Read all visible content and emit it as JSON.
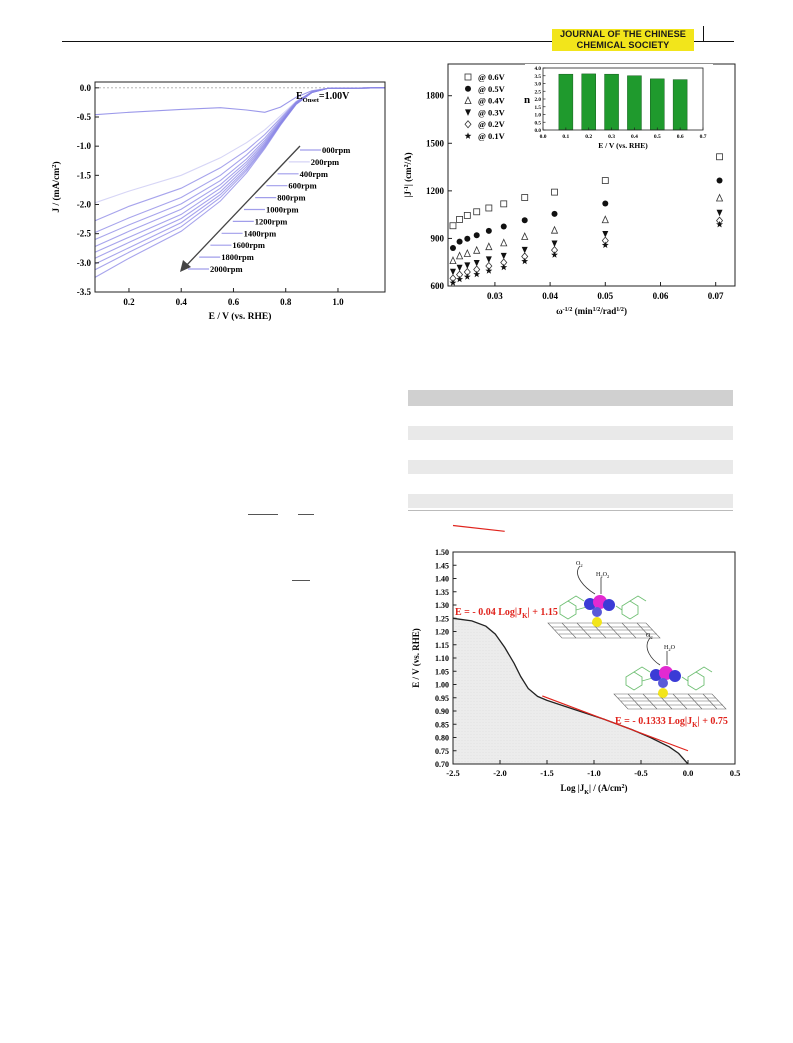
{
  "header": {
    "journal_line1": "JOURNAL OF THE CHINESE",
    "journal_line2": "CHEMICAL SOCIETY",
    "accent_color": "#f2e51b"
  },
  "figures": {
    "lsv": {
      "annotation": "E",
      "annotation_sub": "Onset",
      "annotation_value": "=1.00V"
    },
    "kl": {},
    "tafel": {
      "eq1": "E = - 0.04 Log|J",
      "eq1_sub": "K",
      "eq1_tail": "| + 1.15",
      "eq2": "E = - 0.1333 Log|J",
      "eq2_sub": "K",
      "eq2_tail": "| + 0.75",
      "scheme_o2": "O",
      "scheme_o2_sub": "2",
      "scheme_h2o2": "H",
      "scheme_h2o2_sub": "2",
      "scheme_h2o2_o": "O",
      "scheme_h2o2_sub2": "2",
      "scheme2_o2": "O",
      "scheme2_o2_sub": "2",
      "scheme_h2o": "H",
      "scheme_h2o_sub": "2",
      "scheme_h2o_o": "O",
      "eq_color": "#e0231c"
    }
  },
  "chart_data": [
    {
      "type": "line",
      "xlabel": "E / V (vs. RHE)",
      "ylabel": "J / (mA/cm",
      "ylabel_sup": "2",
      "ylabel_tail": ")",
      "xlim": [
        0.07,
        1.18
      ],
      "ylim": [
        -3.5,
        0.1
      ],
      "x_ticks": [
        "0.2",
        "0.4",
        "0.6",
        "0.8",
        "1.0"
      ],
      "x_tick_values": [
        0.2,
        0.4,
        0.6,
        0.8,
        1.0
      ],
      "y_ticks": [
        "0.0",
        "-0.5",
        "-1.0",
        "-1.5",
        "-2.0",
        "-2.5",
        "-3.0",
        "-3.5"
      ],
      "y_tick_values": [
        0,
        -0.5,
        -1.0,
        -1.5,
        -2.0,
        -2.5,
        -3.0,
        -3.5
      ],
      "series_color": "#8a86e6",
      "series": [
        {
          "name": "000rpm",
          "points": [
            [
              0.07,
              -0.46
            ],
            [
              0.2,
              -0.42
            ],
            [
              0.4,
              -0.37
            ],
            [
              0.55,
              -0.34
            ],
            [
              0.65,
              -0.38
            ],
            [
              0.72,
              -0.42
            ],
            [
              0.78,
              -0.33
            ],
            [
              0.84,
              -0.16
            ],
            [
              0.9,
              -0.05
            ],
            [
              0.96,
              -0.01
            ],
            [
              1.18,
              0.0
            ]
          ]
        },
        {
          "name": "200rpm",
          "points": [
            [
              0.07,
              -1.97
            ],
            [
              0.2,
              -1.77
            ],
            [
              0.4,
              -1.5
            ],
            [
              0.55,
              -1.2
            ],
            [
              0.65,
              -0.94
            ],
            [
              0.72,
              -0.72
            ],
            [
              0.78,
              -0.48
            ],
            [
              0.84,
              -0.23
            ],
            [
              0.9,
              -0.07
            ],
            [
              0.96,
              -0.01
            ],
            [
              1.18,
              0.0
            ]
          ]
        },
        {
          "name": "400rpm",
          "points": [
            [
              0.07,
              -2.28
            ],
            [
              0.2,
              -2.03
            ],
            [
              0.4,
              -1.72
            ],
            [
              0.55,
              -1.37
            ],
            [
              0.65,
              -1.07
            ],
            [
              0.72,
              -0.8
            ],
            [
              0.78,
              -0.52
            ],
            [
              0.84,
              -0.24
            ],
            [
              0.9,
              -0.07
            ],
            [
              0.96,
              -0.01
            ],
            [
              1.18,
              0.0
            ]
          ]
        },
        {
          "name": "600rpm",
          "points": [
            [
              0.07,
              -2.48
            ],
            [
              0.2,
              -2.23
            ],
            [
              0.4,
              -1.88
            ],
            [
              0.55,
              -1.5
            ],
            [
              0.65,
              -1.15
            ],
            [
              0.72,
              -0.86
            ],
            [
              0.78,
              -0.55
            ],
            [
              0.84,
              -0.25
            ],
            [
              0.9,
              -0.07
            ],
            [
              0.96,
              -0.01
            ],
            [
              1.18,
              0.0
            ]
          ]
        },
        {
          "name": "800rpm",
          "points": [
            [
              0.07,
              -2.6
            ],
            [
              0.2,
              -2.35
            ],
            [
              0.4,
              -1.99
            ],
            [
              0.55,
              -1.59
            ],
            [
              0.65,
              -1.22
            ],
            [
              0.72,
              -0.9
            ],
            [
              0.78,
              -0.57
            ],
            [
              0.84,
              -0.26
            ],
            [
              0.9,
              -0.08
            ],
            [
              0.96,
              -0.01
            ],
            [
              1.18,
              0.0
            ]
          ]
        },
        {
          "name": "1000rpm",
          "points": [
            [
              0.07,
              -2.72
            ],
            [
              0.2,
              -2.46
            ],
            [
              0.4,
              -2.08
            ],
            [
              0.55,
              -1.66
            ],
            [
              0.65,
              -1.27
            ],
            [
              0.72,
              -0.93
            ],
            [
              0.78,
              -0.59
            ],
            [
              0.84,
              -0.26
            ],
            [
              0.9,
              -0.08
            ],
            [
              0.96,
              -0.01
            ],
            [
              1.18,
              0.0
            ]
          ]
        },
        {
          "name": "1200rpm",
          "points": [
            [
              0.07,
              -2.82
            ],
            [
              0.2,
              -2.56
            ],
            [
              0.4,
              -2.17
            ],
            [
              0.55,
              -1.72
            ],
            [
              0.65,
              -1.31
            ],
            [
              0.72,
              -0.96
            ],
            [
              0.78,
              -0.6
            ],
            [
              0.84,
              -0.27
            ],
            [
              0.9,
              -0.08
            ],
            [
              0.96,
              -0.01
            ],
            [
              1.18,
              0.0
            ]
          ]
        },
        {
          "name": "1400rpm",
          "points": [
            [
              0.07,
              -2.92
            ],
            [
              0.2,
              -2.65
            ],
            [
              0.4,
              -2.24
            ],
            [
              0.55,
              -1.78
            ],
            [
              0.65,
              -1.35
            ],
            [
              0.72,
              -0.98
            ],
            [
              0.78,
              -0.61
            ],
            [
              0.84,
              -0.27
            ],
            [
              0.9,
              -0.08
            ],
            [
              0.96,
              -0.01
            ],
            [
              1.18,
              0.0
            ]
          ]
        },
        {
          "name": "1600rpm",
          "points": [
            [
              0.07,
              -3.02
            ],
            [
              0.2,
              -2.74
            ],
            [
              0.4,
              -2.31
            ],
            [
              0.55,
              -1.83
            ],
            [
              0.65,
              -1.39
            ],
            [
              0.72,
              -1.0
            ],
            [
              0.78,
              -0.62
            ],
            [
              0.84,
              -0.28
            ],
            [
              0.9,
              -0.08
            ],
            [
              0.96,
              -0.01
            ],
            [
              1.18,
              0.0
            ]
          ]
        },
        {
          "name": "1800rpm",
          "points": [
            [
              0.07,
              -3.12
            ],
            [
              0.2,
              -2.82
            ],
            [
              0.4,
              -2.38
            ],
            [
              0.55,
              -1.88
            ],
            [
              0.65,
              -1.42
            ],
            [
              0.72,
              -1.02
            ],
            [
              0.78,
              -0.63
            ],
            [
              0.84,
              -0.28
            ],
            [
              0.9,
              -0.08
            ],
            [
              0.96,
              -0.01
            ],
            [
              1.18,
              0.0
            ]
          ]
        },
        {
          "name": "2000rpm",
          "points": [
            [
              0.07,
              -3.25
            ],
            [
              0.2,
              -2.92
            ],
            [
              0.4,
              -2.46
            ],
            [
              0.55,
              -1.94
            ],
            [
              0.65,
              -1.46
            ],
            [
              0.72,
              -1.04
            ],
            [
              0.78,
              -0.64
            ],
            [
              0.84,
              -0.28
            ],
            [
              0.9,
              -0.08
            ],
            [
              0.96,
              -0.01
            ],
            [
              1.18,
              0.0
            ]
          ]
        }
      ]
    },
    {
      "type": "scatter",
      "xlabel": "ω",
      "xlabel_sup": "-1/2",
      "xlabel_tail": " (min",
      "xlabel_sup2": "1/2",
      "xlabel_tail2": "/rad",
      "xlabel_sup3": "1/2",
      "xlabel_tail3": ")",
      "ylabel": "|J",
      "ylabel_sup": "-1",
      "ylabel_tail": "| (cm",
      "ylabel_sup2": "2",
      "ylabel_tail2": "/A)",
      "xlim": [
        0.0215,
        0.0735
      ],
      "ylim": [
        600,
        2000
      ],
      "x_ticks": [
        "0.03",
        "0.04",
        "0.05",
        "0.06",
        "0.07"
      ],
      "x_tick_values": [
        0.03,
        0.04,
        0.05,
        0.06,
        0.07
      ],
      "y_ticks": [
        "600",
        "900",
        "1200",
        "1500",
        "1800"
      ],
      "y_tick_values": [
        600,
        900,
        1200,
        1500,
        1800
      ],
      "x": [
        0.0224,
        0.0236,
        0.025,
        0.0267,
        0.0289,
        0.0316,
        0.0354,
        0.0408,
        0.05,
        0.0707
      ],
      "series": [
        {
          "name": "@ 0.6V",
          "marker": "open-square",
          "values": [
            980,
            1020,
            1045,
            1068,
            1092,
            1118,
            1158,
            1192,
            1265,
            1415
          ]
        },
        {
          "name": "@ 0.5V",
          "marker": "filled-circle",
          "values": [
            840,
            880,
            898,
            920,
            948,
            975,
            1015,
            1055,
            1120,
            1265
          ]
        },
        {
          "name": "@ 0.4V",
          "marker": "open-triangle",
          "values": [
            760,
            790,
            805,
            825,
            848,
            872,
            912,
            952,
            1018,
            1155
          ]
        },
        {
          "name": "@ 0.3V",
          "marker": "filled-down-triangle",
          "values": [
            690,
            715,
            730,
            745,
            768,
            790,
            828,
            868,
            928,
            1062
          ]
        },
        {
          "name": "@ 0.2V",
          "marker": "open-diamond",
          "values": [
            648,
            672,
            688,
            704,
            726,
            748,
            786,
            826,
            886,
            1012
          ]
        },
        {
          "name": "@ 0.1V",
          "marker": "filled-star",
          "values": [
            620,
            642,
            658,
            674,
            696,
            718,
            756,
            796,
            858,
            988
          ]
        }
      ]
    },
    {
      "type": "bar",
      "xlabel": "E / V (vs. RHE)",
      "ylabel": "n",
      "categories": [
        "0.1",
        "0.2",
        "0.3",
        "0.4",
        "0.5",
        "0.6"
      ],
      "category_values": [
        0.1,
        0.2,
        0.3,
        0.4,
        0.5,
        0.6
      ],
      "values": [
        3.6,
        3.62,
        3.6,
        3.5,
        3.3,
        3.25
      ],
      "xlim": [
        0.0,
        0.7
      ],
      "ylim": [
        0.0,
        4.0
      ],
      "x_ticks": [
        "0.0",
        "0.1",
        "0.2",
        "0.3",
        "0.4",
        "0.5",
        "0.6",
        "0.7"
      ],
      "x_tick_values": [
        0.0,
        0.1,
        0.2,
        0.3,
        0.4,
        0.5,
        0.6,
        0.7
      ],
      "y_ticks": [
        "0.0",
        "0.5",
        "1.0",
        "1.5",
        "2.0",
        "2.5",
        "3.0",
        "3.5",
        "4.0"
      ],
      "y_tick_values": [
        0,
        0.5,
        1,
        1.5,
        2,
        2.5,
        3,
        3.5,
        4
      ],
      "bar_color": "#1f9a2d"
    },
    {
      "type": "line",
      "xlabel": "Log |J",
      "xlabel_sub": "K",
      "xlabel_tail": "| / (A/cm",
      "xlabel_sup": "2",
      "xlabel_tail2": ")",
      "ylabel": "E / V (vs. RHE)",
      "xlim": [
        -2.5,
        0.5
      ],
      "ylim": [
        0.7,
        1.5
      ],
      "x_ticks": [
        "-2.5",
        "-2.0",
        "-1.5",
        "-1.0",
        "-0.5",
        "0.0",
        "0.5"
      ],
      "x_tick_values": [
        -2.5,
        -2.0,
        -1.5,
        -1.0,
        -0.5,
        0.0,
        0.5
      ],
      "y_ticks": [
        "0.70",
        "0.75",
        "0.80",
        "0.85",
        "0.90",
        "0.95",
        "1.00",
        "1.05",
        "1.10",
        "1.15",
        "1.20",
        "1.25",
        "1.30",
        "1.35",
        "1.40",
        "1.45",
        "1.50"
      ],
      "y_tick_values": [
        0.7,
        0.75,
        0.8,
        0.85,
        0.9,
        0.95,
        1.0,
        1.05,
        1.1,
        1.15,
        1.2,
        1.25,
        1.3,
        1.35,
        1.4,
        1.45,
        1.5
      ],
      "data": [
        [
          -2.5,
          1.25
        ],
        [
          -2.3,
          1.24
        ],
        [
          -2.15,
          1.22
        ],
        [
          -2.05,
          1.19
        ],
        [
          -1.95,
          1.14
        ],
        [
          -1.85,
          1.08
        ],
        [
          -1.78,
          1.03
        ],
        [
          -1.7,
          0.985
        ],
        [
          -1.6,
          0.955
        ],
        [
          -1.5,
          0.94
        ],
        [
          -1.2,
          0.905
        ],
        [
          -0.9,
          0.87
        ],
        [
          -0.6,
          0.83
        ],
        [
          -0.4,
          0.8
        ],
        [
          -0.2,
          0.765
        ],
        [
          -0.1,
          0.74
        ],
        [
          0.0,
          0.7
        ]
      ],
      "fits": [
        {
          "slope": -0.04,
          "intercept": 1.15,
          "x_range": [
            -2.5,
            -1.95
          ]
        },
        {
          "slope": -0.1333,
          "intercept": 0.75,
          "x_range": [
            -1.55,
            0.0
          ]
        }
      ]
    }
  ]
}
